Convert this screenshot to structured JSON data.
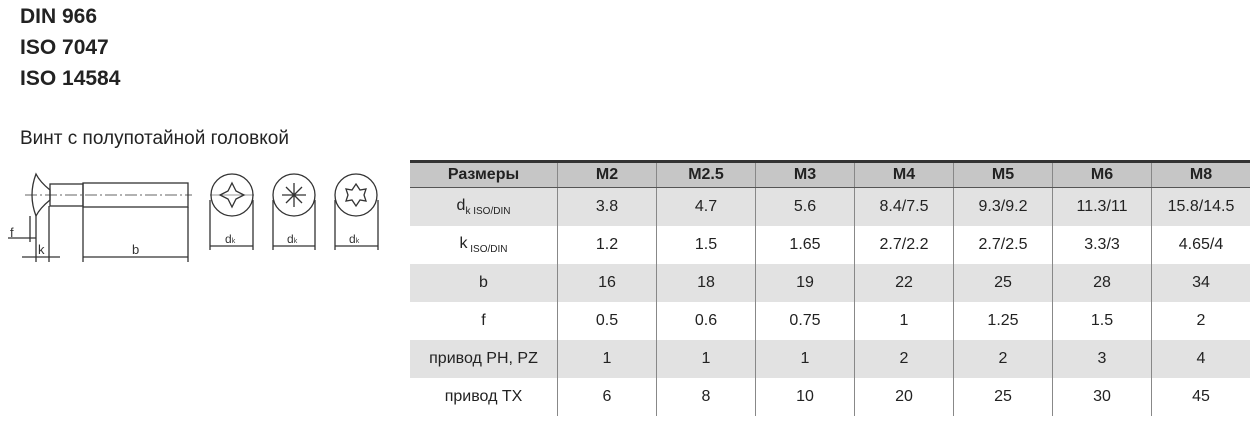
{
  "standards": [
    "DIN 966",
    "ISO 7047",
    "ISO 14584"
  ],
  "title": "Винт с полупотайной головкой",
  "drawing": {
    "labels": {
      "f": "f",
      "k": "k",
      "b": "b",
      "dk": "d",
      "dk_sub": "k"
    },
    "icons": [
      "phillips-head-icon",
      "pozidriv-head-icon",
      "torx-head-icon"
    ]
  },
  "table": {
    "headers": [
      "Размеры",
      "M2",
      "M2.5",
      "M3",
      "M4",
      "M5",
      "M6",
      "M8"
    ],
    "rows": [
      {
        "label": "d",
        "sub": "k ISO/DIN",
        "values": [
          "3.8",
          "4.7",
          "5.6",
          "8.4/7.5",
          "9.3/9.2",
          "11.3/11",
          "15.8/14.5"
        ]
      },
      {
        "label": "k",
        "sub": " ISO/DIN",
        "values": [
          "1.2",
          "1.5",
          "1.65",
          "2.7/2.2",
          "2.7/2.5",
          "3.3/3",
          "4.65/4"
        ]
      },
      {
        "label": "b",
        "sub": "",
        "values": [
          "16",
          "18",
          "19",
          "22",
          "25",
          "28",
          "34"
        ]
      },
      {
        "label": "f",
        "sub": "",
        "values": [
          "0.5",
          "0.6",
          "0.75",
          "1",
          "1.25",
          "1.5",
          "2"
        ]
      },
      {
        "label": "привод PH, PZ",
        "sub": "",
        "values": [
          "1",
          "1",
          "1",
          "2",
          "2",
          "3",
          "4"
        ]
      },
      {
        "label": "привод TX",
        "sub": "",
        "values": [
          "6",
          "8",
          "10",
          "20",
          "25",
          "30",
          "45"
        ]
      }
    ]
  }
}
